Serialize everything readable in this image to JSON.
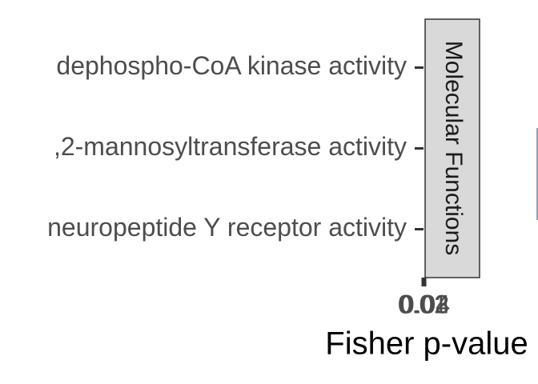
{
  "chart_data": {
    "type": "bar",
    "orientation": "horizontal",
    "categories": [
      "dephospho-CoA kinase activity",
      ",2-mannosyltransferase activity",
      "neuropeptide Y receptor activity"
    ],
    "facet": "Molecular Functions",
    "xlabel": "Fisher p-value",
    "xlim": [
      0.01,
      0.04
    ],
    "xticks": [
      0.01,
      0.02,
      0.03,
      0.04
    ]
  }
}
